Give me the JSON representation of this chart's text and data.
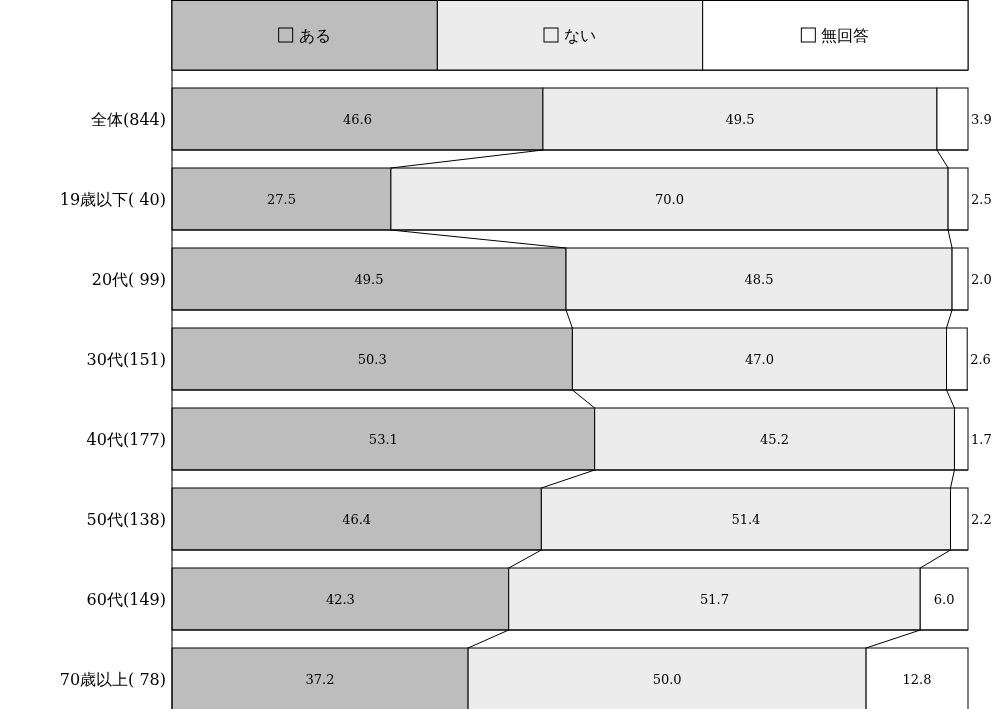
{
  "chart_data": {
    "type": "bar",
    "orientation": "horizontal",
    "stacked": true,
    "legend": "top",
    "xlim": [
      0,
      100
    ],
    "categories": [
      "全体(844)",
      "19歳以下( 40)",
      "20代( 99)",
      "30代(151)",
      "40代(177)",
      "50代(138)",
      "60代(149)",
      "70歳以上( 78)"
    ],
    "series": [
      {
        "name": "ある",
        "color": "#bdbdbd",
        "values": [
          46.6,
          27.5,
          49.5,
          50.3,
          53.1,
          46.4,
          42.3,
          37.2
        ],
        "value_labels": [
          "46.6",
          "27.5",
          "49.5",
          "50.3",
          "53.1",
          "46.4",
          "42.3",
          "37.2"
        ]
      },
      {
        "name": "ない",
        "color": "#ececec",
        "values": [
          49.5,
          70.0,
          48.5,
          47.0,
          45.2,
          51.4,
          51.7,
          50.0
        ],
        "value_labels": [
          "49.5",
          "70.0",
          "48.5",
          "47.0",
          "45.2",
          "51.4",
          "51.7",
          "50.0"
        ]
      },
      {
        "name": "無回答",
        "color": "#ffffff",
        "values": [
          3.9,
          2.5,
          2.0,
          2.6,
          1.7,
          2.2,
          6.0,
          12.8
        ],
        "value_labels": [
          "3.9",
          "2.5",
          "2.0",
          "2.6",
          "1.7",
          "2.2",
          "6.0",
          "12.8"
        ]
      }
    ]
  }
}
